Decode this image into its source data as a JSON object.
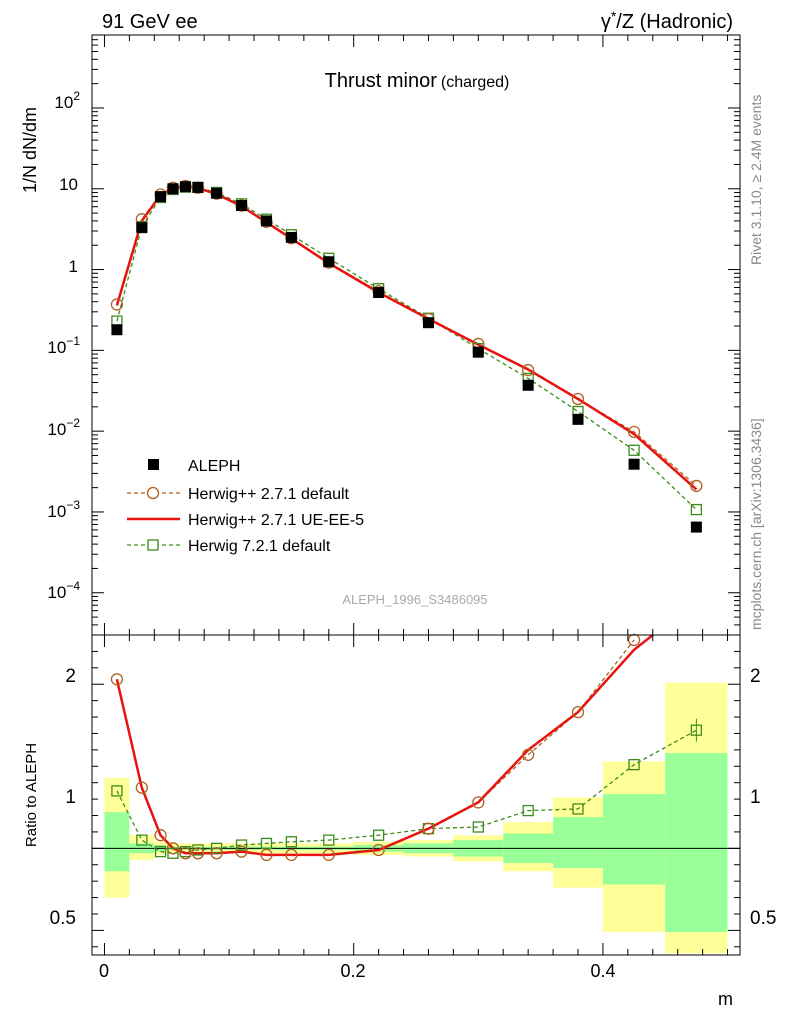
{
  "header": {
    "left": "91 GeV ee",
    "right_gamma": "γ",
    "right_star": "*",
    "right_rest": "/Z (Hadronic)"
  },
  "side_labels": {
    "rivet_pre": "Rivet 3.1.10, ",
    "rivet_ge": "≥",
    "rivet_post": " 2.4M events",
    "mcplots": "mcplots.cern.ch [arXiv:1306.3436]"
  },
  "chart_data": [
    {
      "type": "scatter",
      "title": "Thrust minor",
      "title_suffix": "(charged)",
      "ylabel": "1/N dN/dm",
      "yscale": "log",
      "ylim": [
        3e-05,
        800
      ],
      "xlim": [
        -0.01,
        0.51
      ],
      "watermark": "ALEPH_1996_S3486095",
      "legend_position": "lower-left",
      "ytick_labels": {
        "e_ten": "10",
        "m4": "−4",
        "m3": "−3",
        "m2": "−2",
        "m1": "−1",
        "one": "1",
        "ten": "10",
        "p2": "2"
      },
      "series": [
        {
          "name": "ALEPH",
          "color": "#000000",
          "marker": "filled-square",
          "x": [
            0.01,
            0.03,
            0.045,
            0.055,
            0.065,
            0.075,
            0.09,
            0.11,
            0.13,
            0.15,
            0.18,
            0.22,
            0.26,
            0.3,
            0.34,
            0.38,
            0.425,
            0.475
          ],
          "values": [
            0.18,
            3.3,
            8.0,
            10.0,
            10.6,
            10.4,
            8.8,
            6.2,
            4.0,
            2.5,
            1.25,
            0.52,
            0.22,
            0.095,
            0.037,
            0.014,
            0.0039,
            0.00065
          ]
        },
        {
          "name": "Herwig++ 2.7.1 default",
          "color": "#b06020",
          "marker": "open-circle",
          "x": [
            0.01,
            0.03,
            0.045,
            0.055,
            0.065,
            0.075,
            0.09,
            0.11,
            0.13,
            0.15,
            0.18,
            0.22,
            0.26,
            0.3,
            0.34,
            0.38,
            0.425,
            0.475
          ],
          "values": [
            0.37,
            4.2,
            8.5,
            10.3,
            10.8,
            10.3,
            8.7,
            6.2,
            3.9,
            2.45,
            1.22,
            0.54,
            0.245,
            0.12,
            0.057,
            0.025,
            0.0098,
            0.0021
          ]
        },
        {
          "name": "Herwig++ 2.7.1 UE-EE-5",
          "color": "#e8130e",
          "marker": "line",
          "x": [
            0.01,
            0.03,
            0.045,
            0.055,
            0.065,
            0.075,
            0.09,
            0.11,
            0.13,
            0.15,
            0.18,
            0.22,
            0.26,
            0.3,
            0.34,
            0.38,
            0.425,
            0.475
          ],
          "values": [
            0.36,
            4.0,
            8.4,
            10.2,
            10.7,
            10.2,
            8.6,
            6.1,
            3.85,
            2.42,
            1.2,
            0.52,
            0.245,
            0.118,
            0.058,
            0.025,
            0.0092,
            0.0019
          ]
        },
        {
          "name": "Herwig 7.2.1 default",
          "color": "#3c8c1c",
          "marker": "open-square",
          "x": [
            0.01,
            0.03,
            0.045,
            0.055,
            0.065,
            0.075,
            0.09,
            0.11,
            0.13,
            0.15,
            0.18,
            0.22,
            0.26,
            0.3,
            0.34,
            0.38,
            0.425,
            0.475
          ],
          "values": [
            0.23,
            3.4,
            7.8,
            9.8,
            10.5,
            10.4,
            9.0,
            6.5,
            4.2,
            2.7,
            1.38,
            0.58,
            0.25,
            0.105,
            0.045,
            0.0175,
            0.0058,
            0.00107
          ]
        }
      ]
    },
    {
      "type": "scatter",
      "ylabel": "Ratio to ALEPH",
      "xlabel": "m",
      "ylim": [
        0.35,
        2.3
      ],
      "xlim": [
        -0.01,
        0.51
      ],
      "xticks": [
        0,
        0.2,
        0.4
      ],
      "xtick_labels": [
        "0",
        "0.2",
        "0.4"
      ],
      "yticks": [
        0.5,
        1,
        2
      ],
      "ytick_labels": [
        "0.5",
        "1",
        "2"
      ],
      "bands": {
        "edges": [
          0,
          0.02,
          0.04,
          0.05,
          0.06,
          0.07,
          0.08,
          0.1,
          0.12,
          0.14,
          0.16,
          0.2,
          0.24,
          0.28,
          0.32,
          0.36,
          0.4,
          0.45,
          0.5
        ],
        "stat_sys_lo": [
          0.7,
          0.93,
          0.96,
          0.97,
          0.97,
          0.97,
          0.97,
          0.97,
          0.97,
          0.97,
          0.97,
          0.96,
          0.95,
          0.92,
          0.86,
          0.76,
          0.49,
          0.36
        ],
        "stat_sys_hi": [
          1.43,
          1.08,
          1.04,
          1.03,
          1.03,
          1.03,
          1.03,
          1.03,
          1.03,
          1.03,
          1.03,
          1.04,
          1.05,
          1.08,
          1.16,
          1.31,
          1.53,
          2.01
        ],
        "stat_lo": [
          0.86,
          0.97,
          0.98,
          0.99,
          0.99,
          0.99,
          0.99,
          0.99,
          0.99,
          0.99,
          0.99,
          0.98,
          0.97,
          0.95,
          0.91,
          0.88,
          0.78,
          0.49
        ],
        "stat_hi": [
          1.22,
          1.03,
          1.02,
          1.01,
          1.01,
          1.01,
          1.01,
          1.01,
          1.01,
          1.01,
          1.01,
          1.02,
          1.03,
          1.05,
          1.09,
          1.19,
          1.33,
          1.58
        ]
      },
      "series": [
        {
          "name": "Herwig++ 2.7.1 default",
          "x": [
            0.01,
            0.03,
            0.045,
            0.055,
            0.065,
            0.075,
            0.09,
            0.11,
            0.13,
            0.15,
            0.18,
            0.22,
            0.26,
            0.3,
            0.34,
            0.38,
            0.425
          ],
          "values": [
            2.03,
            1.37,
            1.08,
            1.0,
            0.97,
            0.97,
            0.97,
            0.98,
            0.96,
            0.96,
            0.96,
            0.99,
            1.12,
            1.28,
            1.57,
            1.83,
            2.27
          ]
        },
        {
          "name": "Herwig++ 2.7.1 UE-EE-5",
          "x": [
            0.01,
            0.03,
            0.045,
            0.055,
            0.065,
            0.075,
            0.09,
            0.11,
            0.13,
            0.15,
            0.18,
            0.22,
            0.26,
            0.3,
            0.34,
            0.38,
            0.425,
            0.44
          ],
          "values": [
            2.03,
            1.37,
            1.08,
            1.0,
            0.97,
            0.97,
            0.97,
            0.98,
            0.96,
            0.96,
            0.96,
            0.99,
            1.12,
            1.28,
            1.6,
            1.83,
            2.21,
            2.3
          ]
        },
        {
          "name": "Herwig 7.2.1 default",
          "x": [
            0.01,
            0.03,
            0.045,
            0.055,
            0.065,
            0.075,
            0.09,
            0.11,
            0.13,
            0.15,
            0.18,
            0.22,
            0.26,
            0.3,
            0.34,
            0.38,
            0.425,
            0.475
          ],
          "values": [
            1.35,
            1.05,
            0.98,
            0.97,
            0.98,
            0.99,
            1.0,
            1.02,
            1.03,
            1.04,
            1.05,
            1.08,
            1.12,
            1.13,
            1.23,
            1.24,
            1.51,
            1.72
          ]
        }
      ]
    }
  ]
}
